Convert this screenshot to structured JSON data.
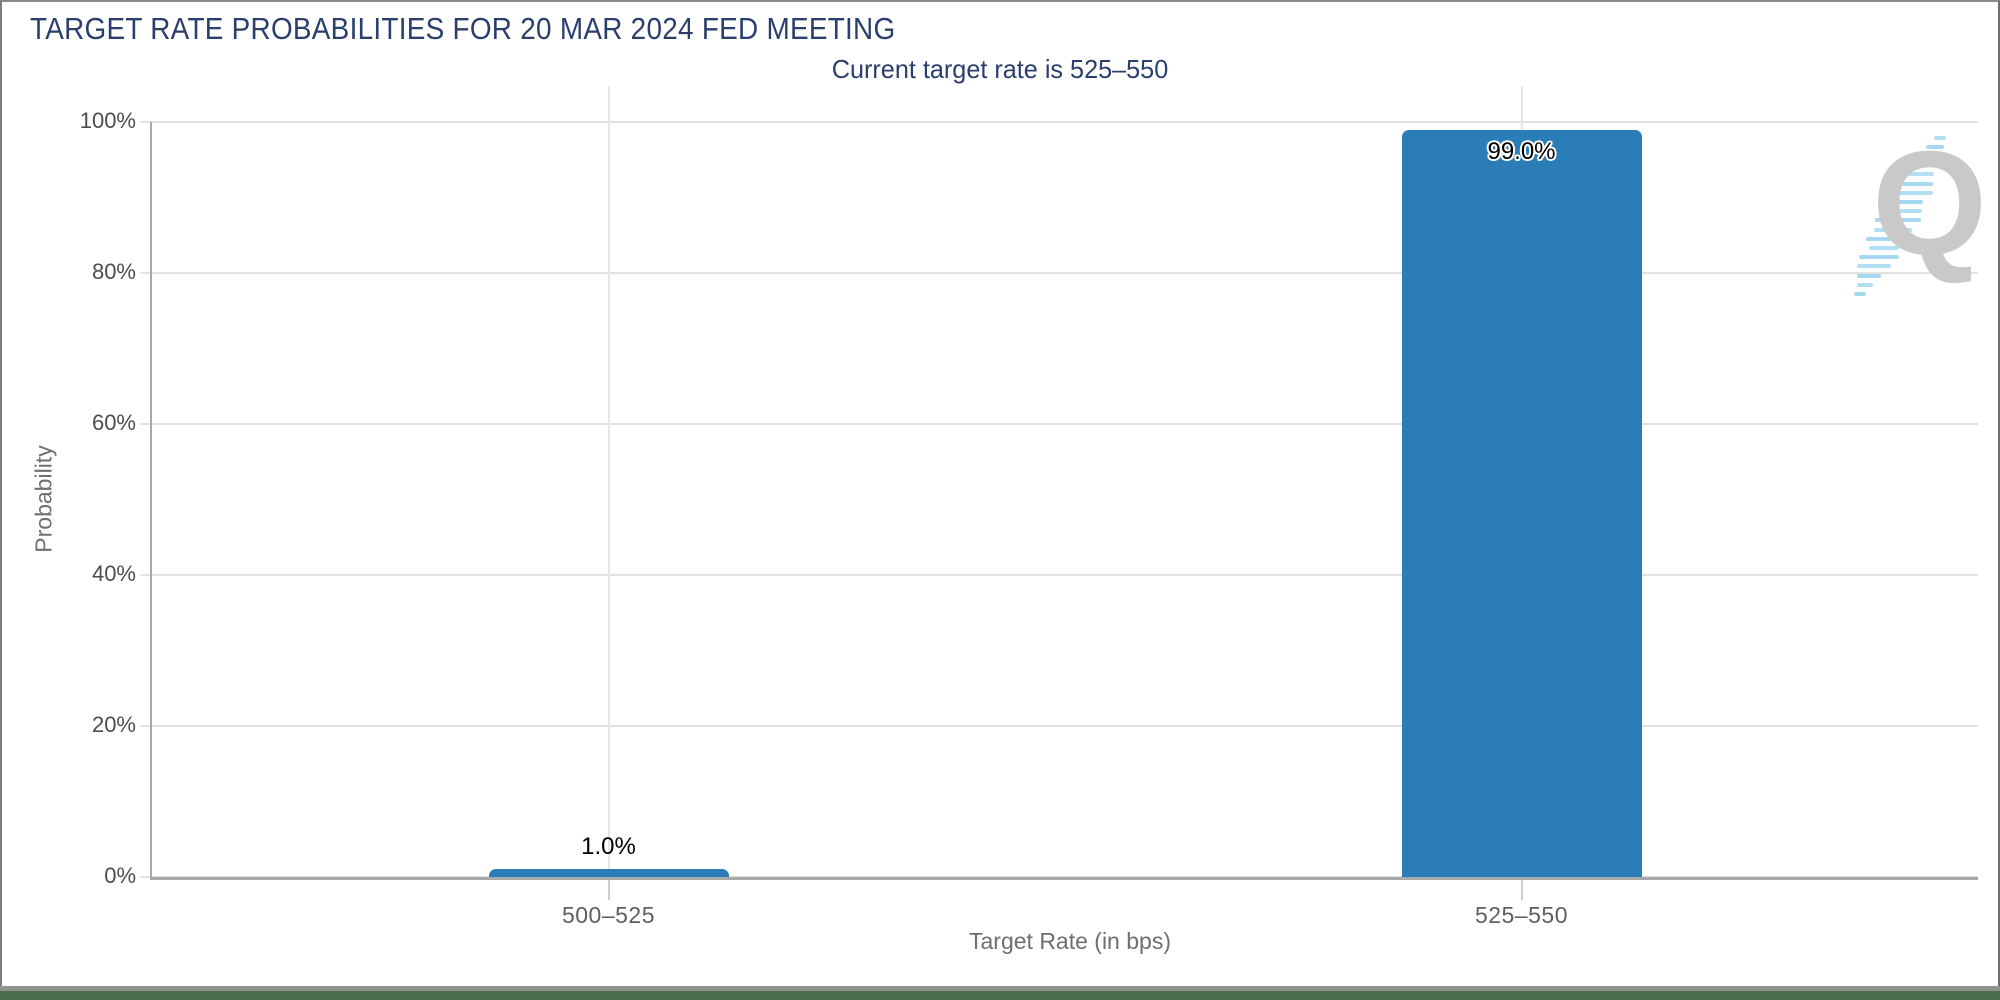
{
  "header": {
    "title": "TARGET RATE PROBABILITIES FOR 20 MAR 2024 FED MEETING",
    "subtitle": "Current target rate is 525–550"
  },
  "watermark": {
    "letter": "Q"
  },
  "colors": {
    "bar": "#2a7db6",
    "title_text": "#2a3f6c",
    "gridline": "#e2e2e2",
    "axis_line": "#a8a8a8",
    "tick_label": "#4d4d4d",
    "axis_title": "#6f6f6f",
    "bottom_bar_green": "#4a6e50",
    "bottom_bar_gray": "#8f938f",
    "frame_border": "#7d7d7d",
    "watermark_gray": "#c9c9c9",
    "watermark_blue": "#a5d9f2"
  },
  "chart_data": {
    "type": "bar",
    "title": "TARGET RATE PROBABILITIES FOR 20 MAR 2024 FED MEETING",
    "subtitle": "Current target rate is 525–550",
    "categories": [
      "500–525",
      "525–550"
    ],
    "values": [
      1.0,
      99.0
    ],
    "value_labels": [
      "1.0%",
      "99.0%"
    ],
    "xlabel": "Target Rate (in bps)",
    "ylabel": "Probability",
    "ylim": [
      0,
      100
    ],
    "yticks": [
      0,
      20,
      40,
      60,
      80,
      100
    ],
    "ytick_labels": [
      "0%",
      "20%",
      "40%",
      "60%",
      "80%",
      "100%"
    ],
    "bar_color": "#2a7db6",
    "grid": true,
    "legend": null
  }
}
